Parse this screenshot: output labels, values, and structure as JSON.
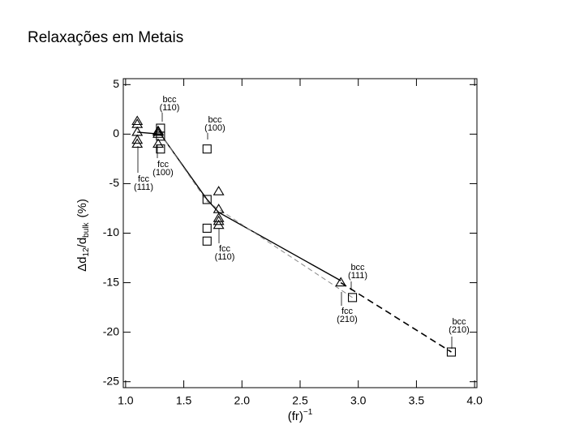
{
  "slide_title": "Relaxações em Metais",
  "chart_data": {
    "type": "scatter",
    "x_label": {
      "main": "(fr)",
      "sup": "−1"
    },
    "y_label": {
      "main": "Δd",
      "sub1": "12",
      "sep": "/d",
      "sub2": "bulk",
      "unit": "(%)"
    },
    "xlim": [
      0.98,
      4.02
    ],
    "ylim": [
      -25.6,
      5.6
    ],
    "xticks": [
      {
        "value": 1,
        "label": "1.0"
      },
      {
        "value": 1.5,
        "label": "1.5"
      },
      {
        "value": 2,
        "label": "2.0"
      },
      {
        "value": 2.5,
        "label": "2.5"
      },
      {
        "value": 3,
        "label": "3.0"
      },
      {
        "value": 3.5,
        "label": "3.5"
      },
      {
        "value": 4,
        "label": "4.0"
      }
    ],
    "yticks": [
      5,
      0,
      -5,
      -10,
      -15,
      -20,
      -25
    ],
    "series": [
      {
        "marker": "triangle",
        "color": "#000000",
        "x": [
          1.1,
          1.1,
          1.1,
          1.1,
          1.1,
          1.28,
          1.28,
          1.28,
          1.28,
          1.8,
          1.8,
          1.8,
          1.8,
          1.8,
          2.85
        ],
        "values": [
          1.3,
          1.0,
          0.2,
          -0.6,
          -1.0,
          0.3,
          0.2,
          0,
          -1.0,
          -5.8,
          -7.6,
          -8.5,
          -8.8,
          -9.2,
          -15
        ]
      },
      {
        "marker": "square",
        "color": "#000000",
        "x": [
          1.3,
          1.3,
          1.3,
          1.7,
          1.7,
          1.7,
          1.7,
          2.95,
          3.8
        ],
        "values": [
          0.6,
          -0.2,
          -1.5,
          -1.5,
          -6.6,
          -9.5,
          -10.8,
          -16.5,
          -22
        ]
      },
      {
        "line": "solid",
        "color": "#000000",
        "x": [
          1.1,
          1.3,
          1.7,
          1.8,
          2.85
        ],
        "values": [
          0.2,
          0,
          -6.6,
          -7.9,
          -14.8
        ]
      },
      {
        "line": "dashed-thin",
        "color": "#888888",
        "x": [
          1.3,
          1.7,
          2.95
        ],
        "values": [
          0,
          -6.8,
          -16.5
        ]
      },
      {
        "line": "dashed",
        "color": "#000000",
        "x": [
          2.85,
          3.8
        ],
        "values": [
          -15,
          -22
        ]
      }
    ],
    "annotations": [
      {
        "lines": [
          "bcc",
          "(110)"
        ]
      },
      {
        "lines": [
          "fcc",
          "(100)"
        ]
      },
      {
        "lines": [
          "fcc",
          "(111)"
        ]
      },
      {
        "lines": [
          "bcc",
          "(100)"
        ]
      },
      {
        "lines": [
          "fcc",
          "(110)"
        ]
      },
      {
        "lines": [
          "bcc",
          "(111)"
        ]
      },
      {
        "lines": [
          "fcc",
          "(210)"
        ]
      },
      {
        "lines": [
          "bcc",
          "(210)"
        ]
      }
    ]
  }
}
